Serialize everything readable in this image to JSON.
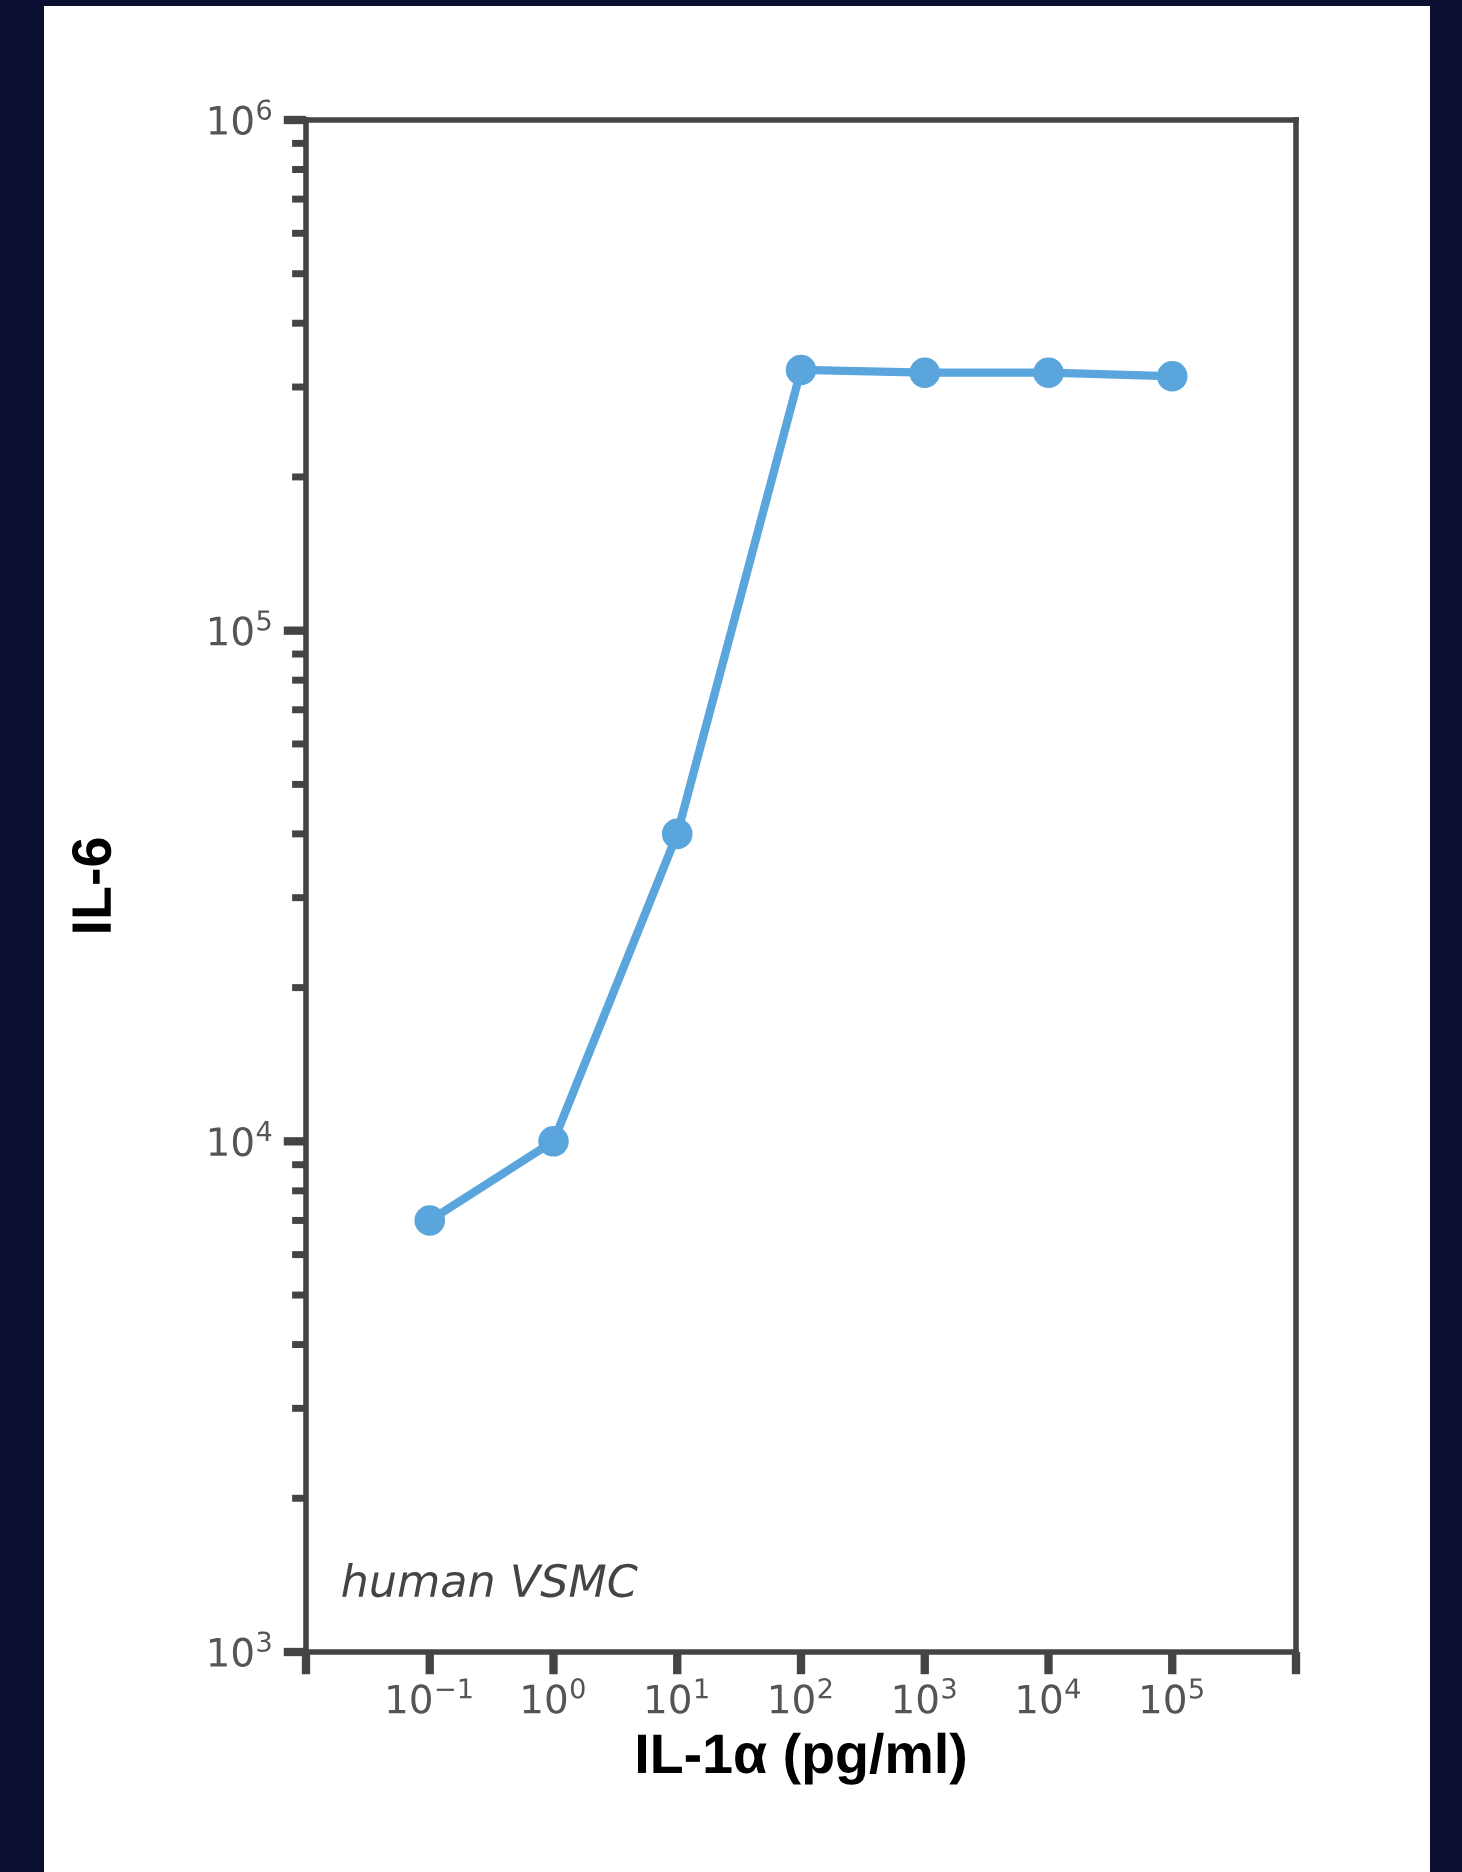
{
  "chart_data": {
    "type": "line",
    "xlabel": "IL-1α (pg/ml)",
    "ylabel": "IL-6",
    "x": [
      0.1,
      1,
      10,
      100,
      1000,
      10000,
      100000
    ],
    "series": [
      {
        "color": "#5aa5dc",
        "values": [
          7000,
          10000,
          40000,
          324000,
          320000,
          320000,
          315000
        ]
      }
    ],
    "log": "xy",
    "marker": "circle",
    "line_style": "solid",
    "grid": false,
    "xlim": [
      0.01,
      1000000
    ],
    "ylim": [
      1000,
      1000000
    ],
    "xticks": [
      {
        "value": 0.01,
        "label": null
      },
      {
        "value": 0.1,
        "label": "10$^{−1}$"
      },
      {
        "value": 1,
        "label": "10$^{0}$"
      },
      {
        "value": 10,
        "label": "10$^{1}$"
      },
      {
        "value": 100,
        "label": "10$^{2}$"
      },
      {
        "value": 1000,
        "label": "10$^{3}$"
      },
      {
        "value": 10000,
        "label": "10$^{4}$"
      },
      {
        "value": 100000,
        "label": "10$^{5}$"
      },
      {
        "value": 1000000,
        "label": null
      }
    ],
    "yticks": [
      {
        "value": 1000,
        "label": "10$^{3}$"
      },
      {
        "value": 10000,
        "label": "10$^{4}$"
      },
      {
        "value": 100000,
        "label": "10$^{5}$"
      },
      {
        "value": 1000000,
        "label": "10$^{6}$"
      }
    ],
    "annotations": [
      "human VSMC"
    ]
  }
}
